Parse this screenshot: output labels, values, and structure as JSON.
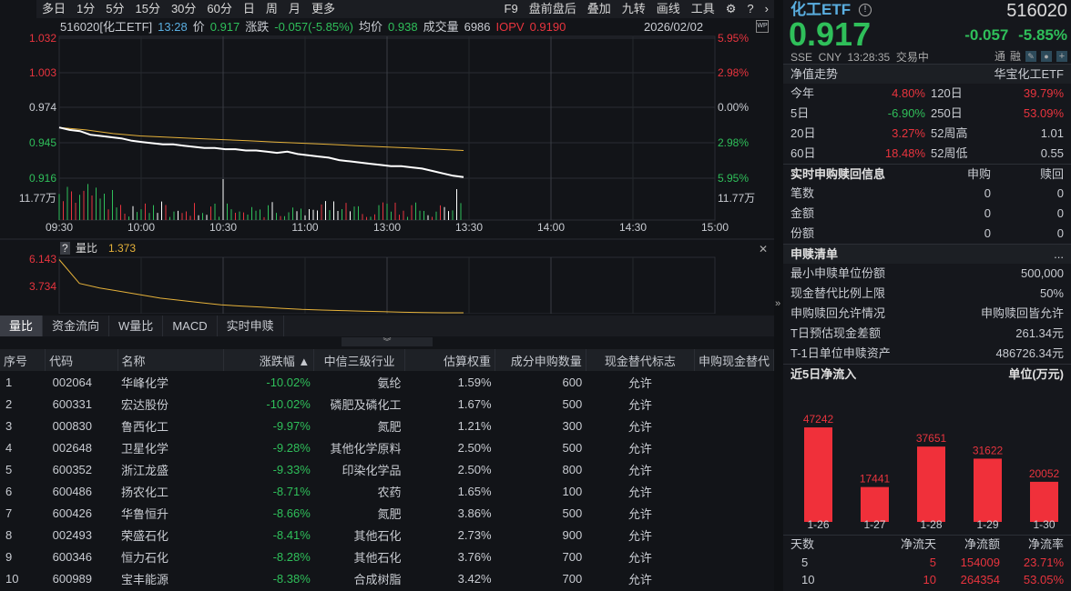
{
  "toolbar": {
    "left": [
      "多日",
      "1分",
      "5分",
      "15分",
      "30分",
      "60分",
      "日",
      "周",
      "月",
      "更多"
    ],
    "right": [
      "F9",
      "盘前盘后",
      "叠加",
      "九转",
      "画线",
      "工具"
    ]
  },
  "info": {
    "code": "516020[化工ETF]",
    "time": "13:28",
    "price_label": "价",
    "price": "0.917",
    "chg_label": "涨跌",
    "chg": "-0.057(-5.85%)",
    "avg_label": "均价",
    "avg": "0.938",
    "vol_label": "成交量",
    "vol": "6986",
    "iopv_label": "IOPV",
    "iopv": "0.9190",
    "date": "2026/02/02",
    "wp": "WP"
  },
  "chart": {
    "y_left": [
      "1.032",
      "1.003",
      "0.974",
      "0.945",
      "0.916"
    ],
    "y_right": [
      "5.95%",
      "2.98%",
      "0.00%",
      "2.98%",
      "5.95%"
    ],
    "vol_label": "11.77万",
    "times": [
      "09:30",
      "10:00",
      "10:30",
      "11:00",
      "13:00",
      "13:30",
      "14:00",
      "14:30",
      "15:00"
    ],
    "price_series": [
      0.958,
      0.956,
      0.955,
      0.952,
      0.951,
      0.95,
      0.949,
      0.947,
      0.946,
      0.945,
      0.944,
      0.944,
      0.943,
      0.942,
      0.941,
      0.941,
      0.94,
      0.94,
      0.939,
      0.939,
      0.938,
      0.937,
      0.938,
      0.936,
      0.935,
      0.934,
      0.933,
      0.931,
      0.93,
      0.929,
      0.928,
      0.927,
      0.926,
      0.926,
      0.925,
      0.924,
      0.922,
      0.92,
      0.918,
      0.917
    ],
    "avg_series": [
      0.958,
      0.956,
      0.953,
      0.951,
      0.95,
      0.949,
      0.948,
      0.947,
      0.946,
      0.945,
      0.944,
      0.943,
      0.942,
      0.941,
      0.94,
      0.939
    ],
    "colors": {
      "price": "#ffffff",
      "avg": "#e6b23a",
      "up": "#e8343e",
      "down": "#2fbf5a"
    }
  },
  "ratio": {
    "help": "?",
    "label": "量比",
    "value": "1.373",
    "y_labels": [
      "6.143",
      "3.734"
    ],
    "series": [
      6.1,
      4.0,
      3.6,
      3.3,
      3.0,
      2.7,
      2.5,
      2.3,
      2.1,
      2.0,
      1.9,
      1.8,
      1.7,
      1.65,
      1.6,
      1.55,
      1.5,
      1.45,
      1.42,
      1.39,
      1.373
    ]
  },
  "tabs": [
    "量比",
    "资金流向",
    "W量比",
    "MACD",
    "实时申赎"
  ],
  "table": {
    "headers": [
      "序号",
      "代码",
      "名称",
      "涨跌幅 ▲",
      "中信三级行业",
      "估算权重",
      "成分申购数量",
      "现金替代标志",
      "申购现金替代"
    ],
    "rows": [
      [
        "1",
        "002064",
        "华峰化学",
        "-10.02%",
        "氨纶",
        "1.59%",
        "600",
        "允许"
      ],
      [
        "2",
        "600331",
        "宏达股份",
        "-10.02%",
        "磷肥及磷化工",
        "1.67%",
        "500",
        "允许"
      ],
      [
        "3",
        "000830",
        "鲁西化工",
        "-9.97%",
        "氮肥",
        "1.21%",
        "300",
        "允许"
      ],
      [
        "4",
        "002648",
        "卫星化学",
        "-9.28%",
        "其他化学原料",
        "2.50%",
        "500",
        "允许"
      ],
      [
        "5",
        "600352",
        "浙江龙盛",
        "-9.33%",
        "印染化学品",
        "2.50%",
        "800",
        "允许"
      ],
      [
        "6",
        "600486",
        "扬农化工",
        "-8.71%",
        "农药",
        "1.65%",
        "100",
        "允许"
      ],
      [
        "7",
        "600426",
        "华鲁恒升",
        "-8.66%",
        "氮肥",
        "3.86%",
        "500",
        "允许"
      ],
      [
        "8",
        "002493",
        "荣盛石化",
        "-8.41%",
        "其他石化",
        "2.73%",
        "900",
        "允许"
      ],
      [
        "9",
        "600346",
        "恒力石化",
        "-8.28%",
        "其他石化",
        "3.76%",
        "700",
        "允许"
      ],
      [
        "10",
        "600989",
        "宝丰能源",
        "-8.38%",
        "合成树脂",
        "3.42%",
        "700",
        "允许"
      ]
    ]
  },
  "quote": {
    "name": "化工ETF",
    "code": "516020",
    "price": "0.917",
    "chg": "-0.057",
    "pct": "-5.85%",
    "meta": "SSE  CNY  13:28:35  交易中",
    "tags": [
      "通",
      "融"
    ]
  },
  "nav": {
    "title": "净值走势",
    "fund": "华宝化工ETF",
    "rows": [
      [
        "今年",
        "4.80%",
        "120日",
        "39.79%"
      ],
      [
        "5日",
        "-6.90%",
        "250日",
        "53.09%"
      ],
      [
        "20日",
        "3.27%",
        "52周高",
        "1.01"
      ],
      [
        "60日",
        "18.48%",
        "52周低",
        "0.55"
      ]
    ]
  },
  "realtime": {
    "title": "实时申购赎回信息",
    "cols": [
      "申购",
      "赎回"
    ],
    "rows": [
      [
        "笔数",
        "0",
        "0"
      ],
      [
        "金额",
        "0",
        "0"
      ],
      [
        "份额",
        "0",
        "0"
      ]
    ]
  },
  "list": {
    "title": "申赎清单",
    "more": "...",
    "rows": [
      [
        "最小申赎单位份额",
        "500,000"
      ],
      [
        "现金替代比例上限",
        "50%"
      ],
      [
        "申购赎回允许情况",
        "申购赎回皆允许"
      ],
      [
        "T日预估现金差额",
        "261.34元"
      ],
      [
        "T-1日单位申赎资产",
        "486726.34元"
      ]
    ]
  },
  "flow": {
    "title": "近5日净流入",
    "unit": "单位(万元)",
    "chart_data": {
      "type": "bar",
      "categories": [
        "1-26",
        "1-27",
        "1-28",
        "1-29",
        "1-30"
      ],
      "values": [
        47242,
        17441,
        37651,
        31622,
        20052
      ]
    },
    "summary_headers": [
      "天数",
      "净流天",
      "净流额",
      "净流率"
    ],
    "summary": [
      [
        "5",
        "5",
        "154009",
        "23.71%"
      ],
      [
        "10",
        "10",
        "264354",
        "53.05%"
      ]
    ]
  }
}
